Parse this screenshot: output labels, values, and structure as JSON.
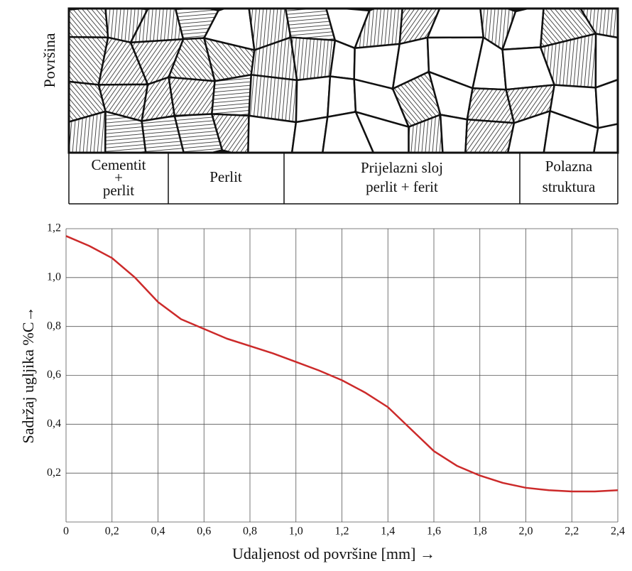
{
  "microstructure": {
    "side_label": "Površina",
    "zones": [
      {
        "lines": [
          "Cementit",
          "+",
          "perlit"
        ]
      },
      {
        "lines": [
          "Perlit"
        ]
      },
      {
        "lines": [
          "Prijelazni sloj",
          "perlit + ferit"
        ]
      },
      {
        "lines": [
          "Polazna",
          "struktura"
        ]
      }
    ]
  },
  "chart_data": {
    "type": "line",
    "x_label": "Udaljenost od površine [mm] →",
    "y_label": "Sadržaj ugljika %C→",
    "x": [
      0,
      0.1,
      0.2,
      0.3,
      0.4,
      0.5,
      0.6,
      0.7,
      0.8,
      0.9,
      1.0,
      1.1,
      1.2,
      1.3,
      1.4,
      1.5,
      1.6,
      1.7,
      1.8,
      1.9,
      2.0,
      2.1,
      2.2,
      2.3,
      2.4
    ],
    "series": [
      {
        "color": "#cc2a2a",
        "values": [
          1.17,
          1.13,
          1.08,
          1.0,
          0.9,
          0.83,
          0.79,
          0.75,
          0.72,
          0.69,
          0.655,
          0.62,
          0.58,
          0.53,
          0.47,
          0.38,
          0.29,
          0.23,
          0.19,
          0.16,
          0.14,
          0.13,
          0.125,
          0.125,
          0.13
        ]
      }
    ],
    "xlim": [
      0,
      2.4
    ],
    "ylim": [
      0,
      1.2
    ],
    "xticks": [
      0,
      {
        "value": 0.2,
        "label": "0,2"
      },
      {
        "value": 0.4,
        "label": "0,4"
      },
      {
        "value": 0.6,
        "label": "0,6"
      },
      {
        "value": 0.8,
        "label": "0,8"
      },
      {
        "value": 1.0,
        "label": "1,0"
      },
      {
        "value": 1.2,
        "label": "1,2"
      },
      {
        "value": 1.4,
        "label": "1,4"
      },
      {
        "value": 1.6,
        "label": "1,6"
      },
      {
        "value": 1.8,
        "label": "1,8"
      },
      {
        "value": 2.0,
        "label": "2,0"
      },
      {
        "value": 2.2,
        "label": "2,2"
      },
      {
        "value": 2.4,
        "label": "2,4"
      }
    ],
    "yticks": [
      {
        "value": 0.2,
        "label": "0,2"
      },
      {
        "value": 0.4,
        "label": "0,4"
      },
      {
        "value": 0.6,
        "label": "0,6"
      },
      {
        "value": 0.8,
        "label": "0,8"
      },
      {
        "value": 1.0,
        "label": "1,0"
      },
      {
        "value": 1.2,
        "label": "1,2"
      }
    ],
    "grid": true
  }
}
